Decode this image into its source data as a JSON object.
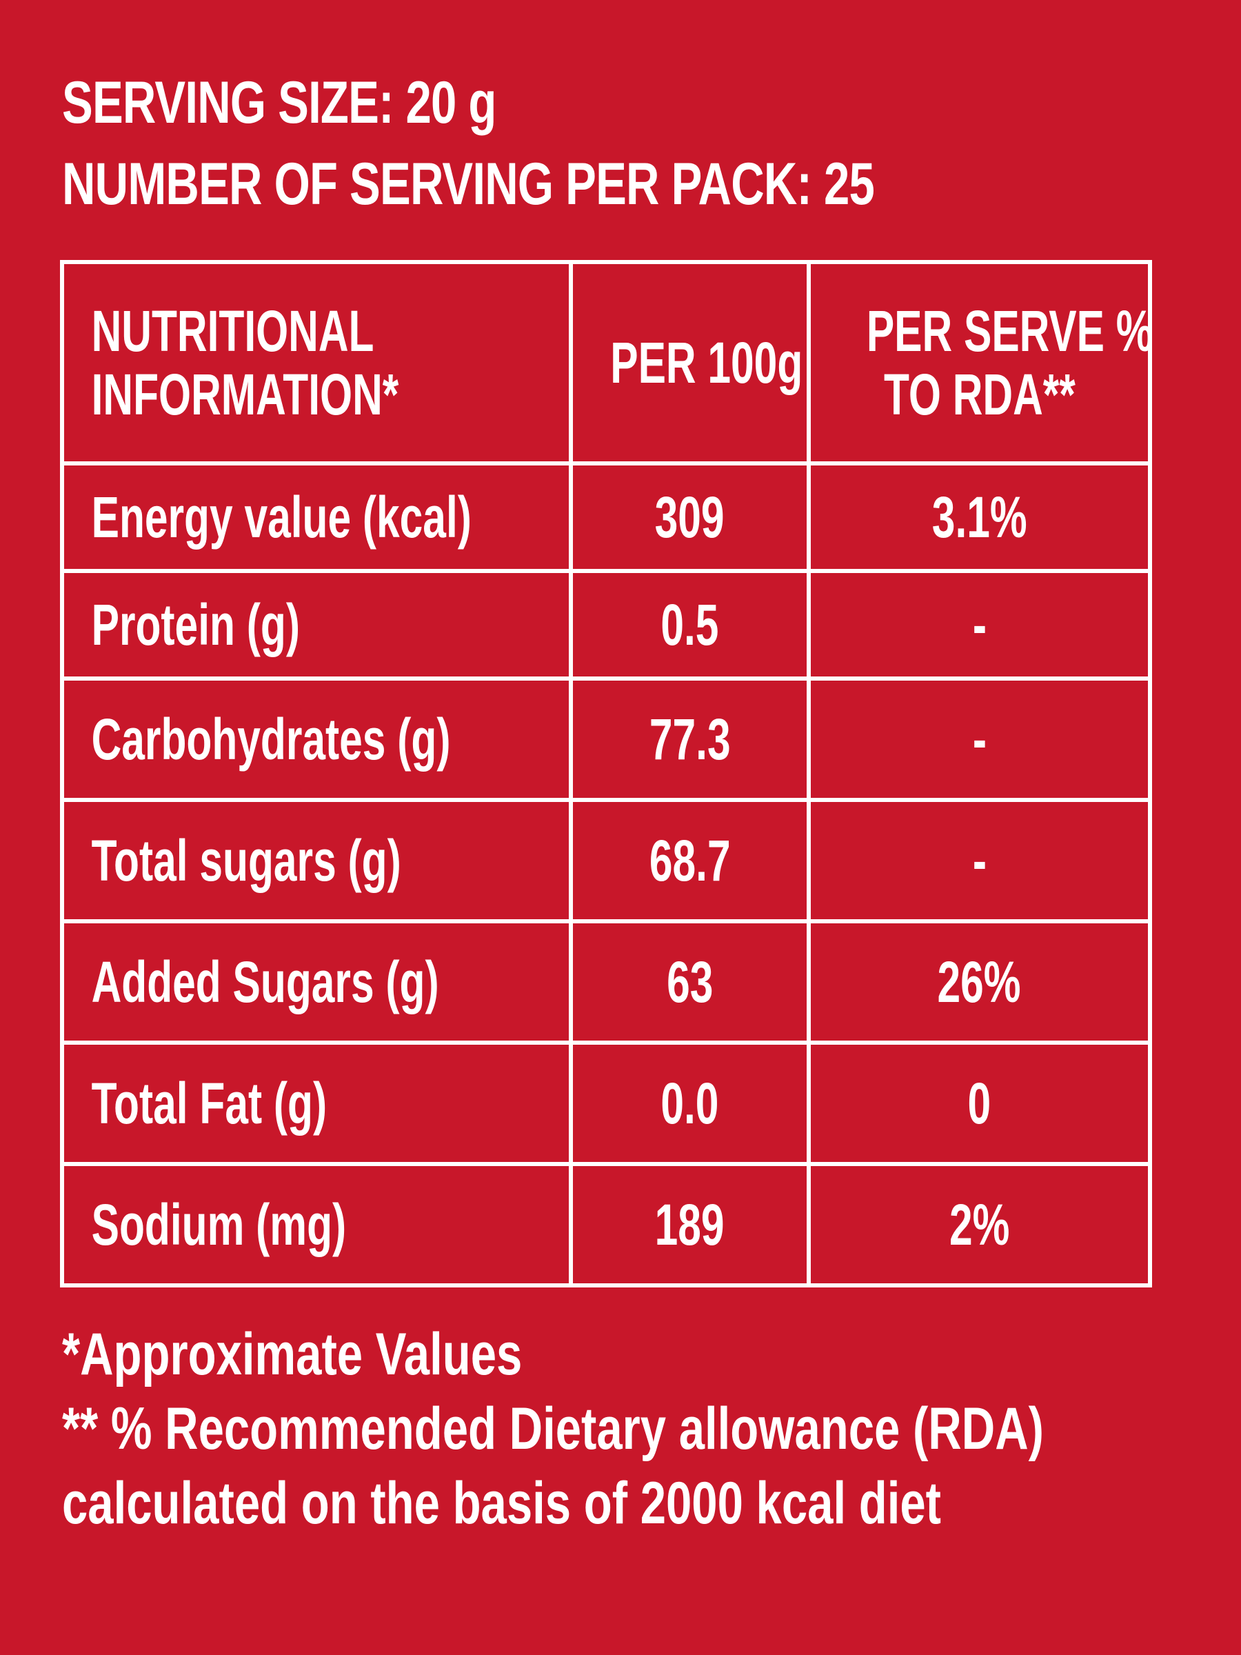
{
  "serving": {
    "size_line": "SERVING SIZE: 20 g",
    "count_line": "NUMBER OF SERVING PER PACK: 25"
  },
  "table": {
    "headers": {
      "name_line1": "NUTRITIONAL",
      "name_line2": "INFORMATION*",
      "per100": "PER 100g",
      "rda_line1": "PER SERVE %",
      "rda_line2": "TO RDA**"
    },
    "rows": [
      {
        "name": "Energy value (kcal)",
        "per100": "309",
        "rda": "3.1%"
      },
      {
        "name": "Protein (g)",
        "per100": "0.5",
        "rda": "-"
      },
      {
        "name": "Carbohydrates (g)",
        "per100": "77.3",
        "rda": "-"
      },
      {
        "name": "Total sugars (g)",
        "per100": "68.7",
        "rda": "-"
      },
      {
        "name": "Added Sugars (g)",
        "per100": "63",
        "rda": "26%"
      },
      {
        "name": "Total Fat (g)",
        "per100": "0.0",
        "rda": "0"
      },
      {
        "name": "Sodium (mg)",
        "per100": "189",
        "rda": "2%"
      }
    ]
  },
  "footnotes": {
    "line1": "*Approximate Values",
    "line2": "** % Recommended Dietary allowance (RDA)",
    "line3": "calculated on the basis of 2000 kcal diet"
  },
  "colors": {
    "background": "#c8172a",
    "text": "#ffffff"
  }
}
